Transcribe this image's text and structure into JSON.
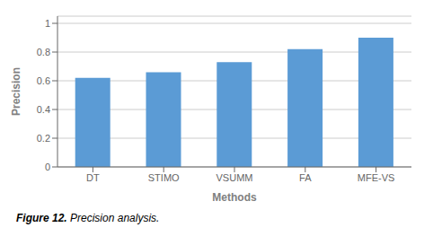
{
  "chart_data": {
    "type": "bar",
    "categories": [
      "DT",
      "STIMO",
      "VSUMM",
      "FA",
      "MFE-VS"
    ],
    "values": [
      0.62,
      0.66,
      0.73,
      0.82,
      0.9
    ],
    "color": "#5b9bd5",
    "xlabel": "Methods",
    "ylabel": "Precision",
    "ylim": [
      0,
      1.05
    ],
    "yticks": [
      0,
      0.2,
      0.4,
      0.6,
      0.8,
      1
    ],
    "grid": true,
    "annotations": [
      "Figure 12.",
      "Precision analysis."
    ]
  }
}
